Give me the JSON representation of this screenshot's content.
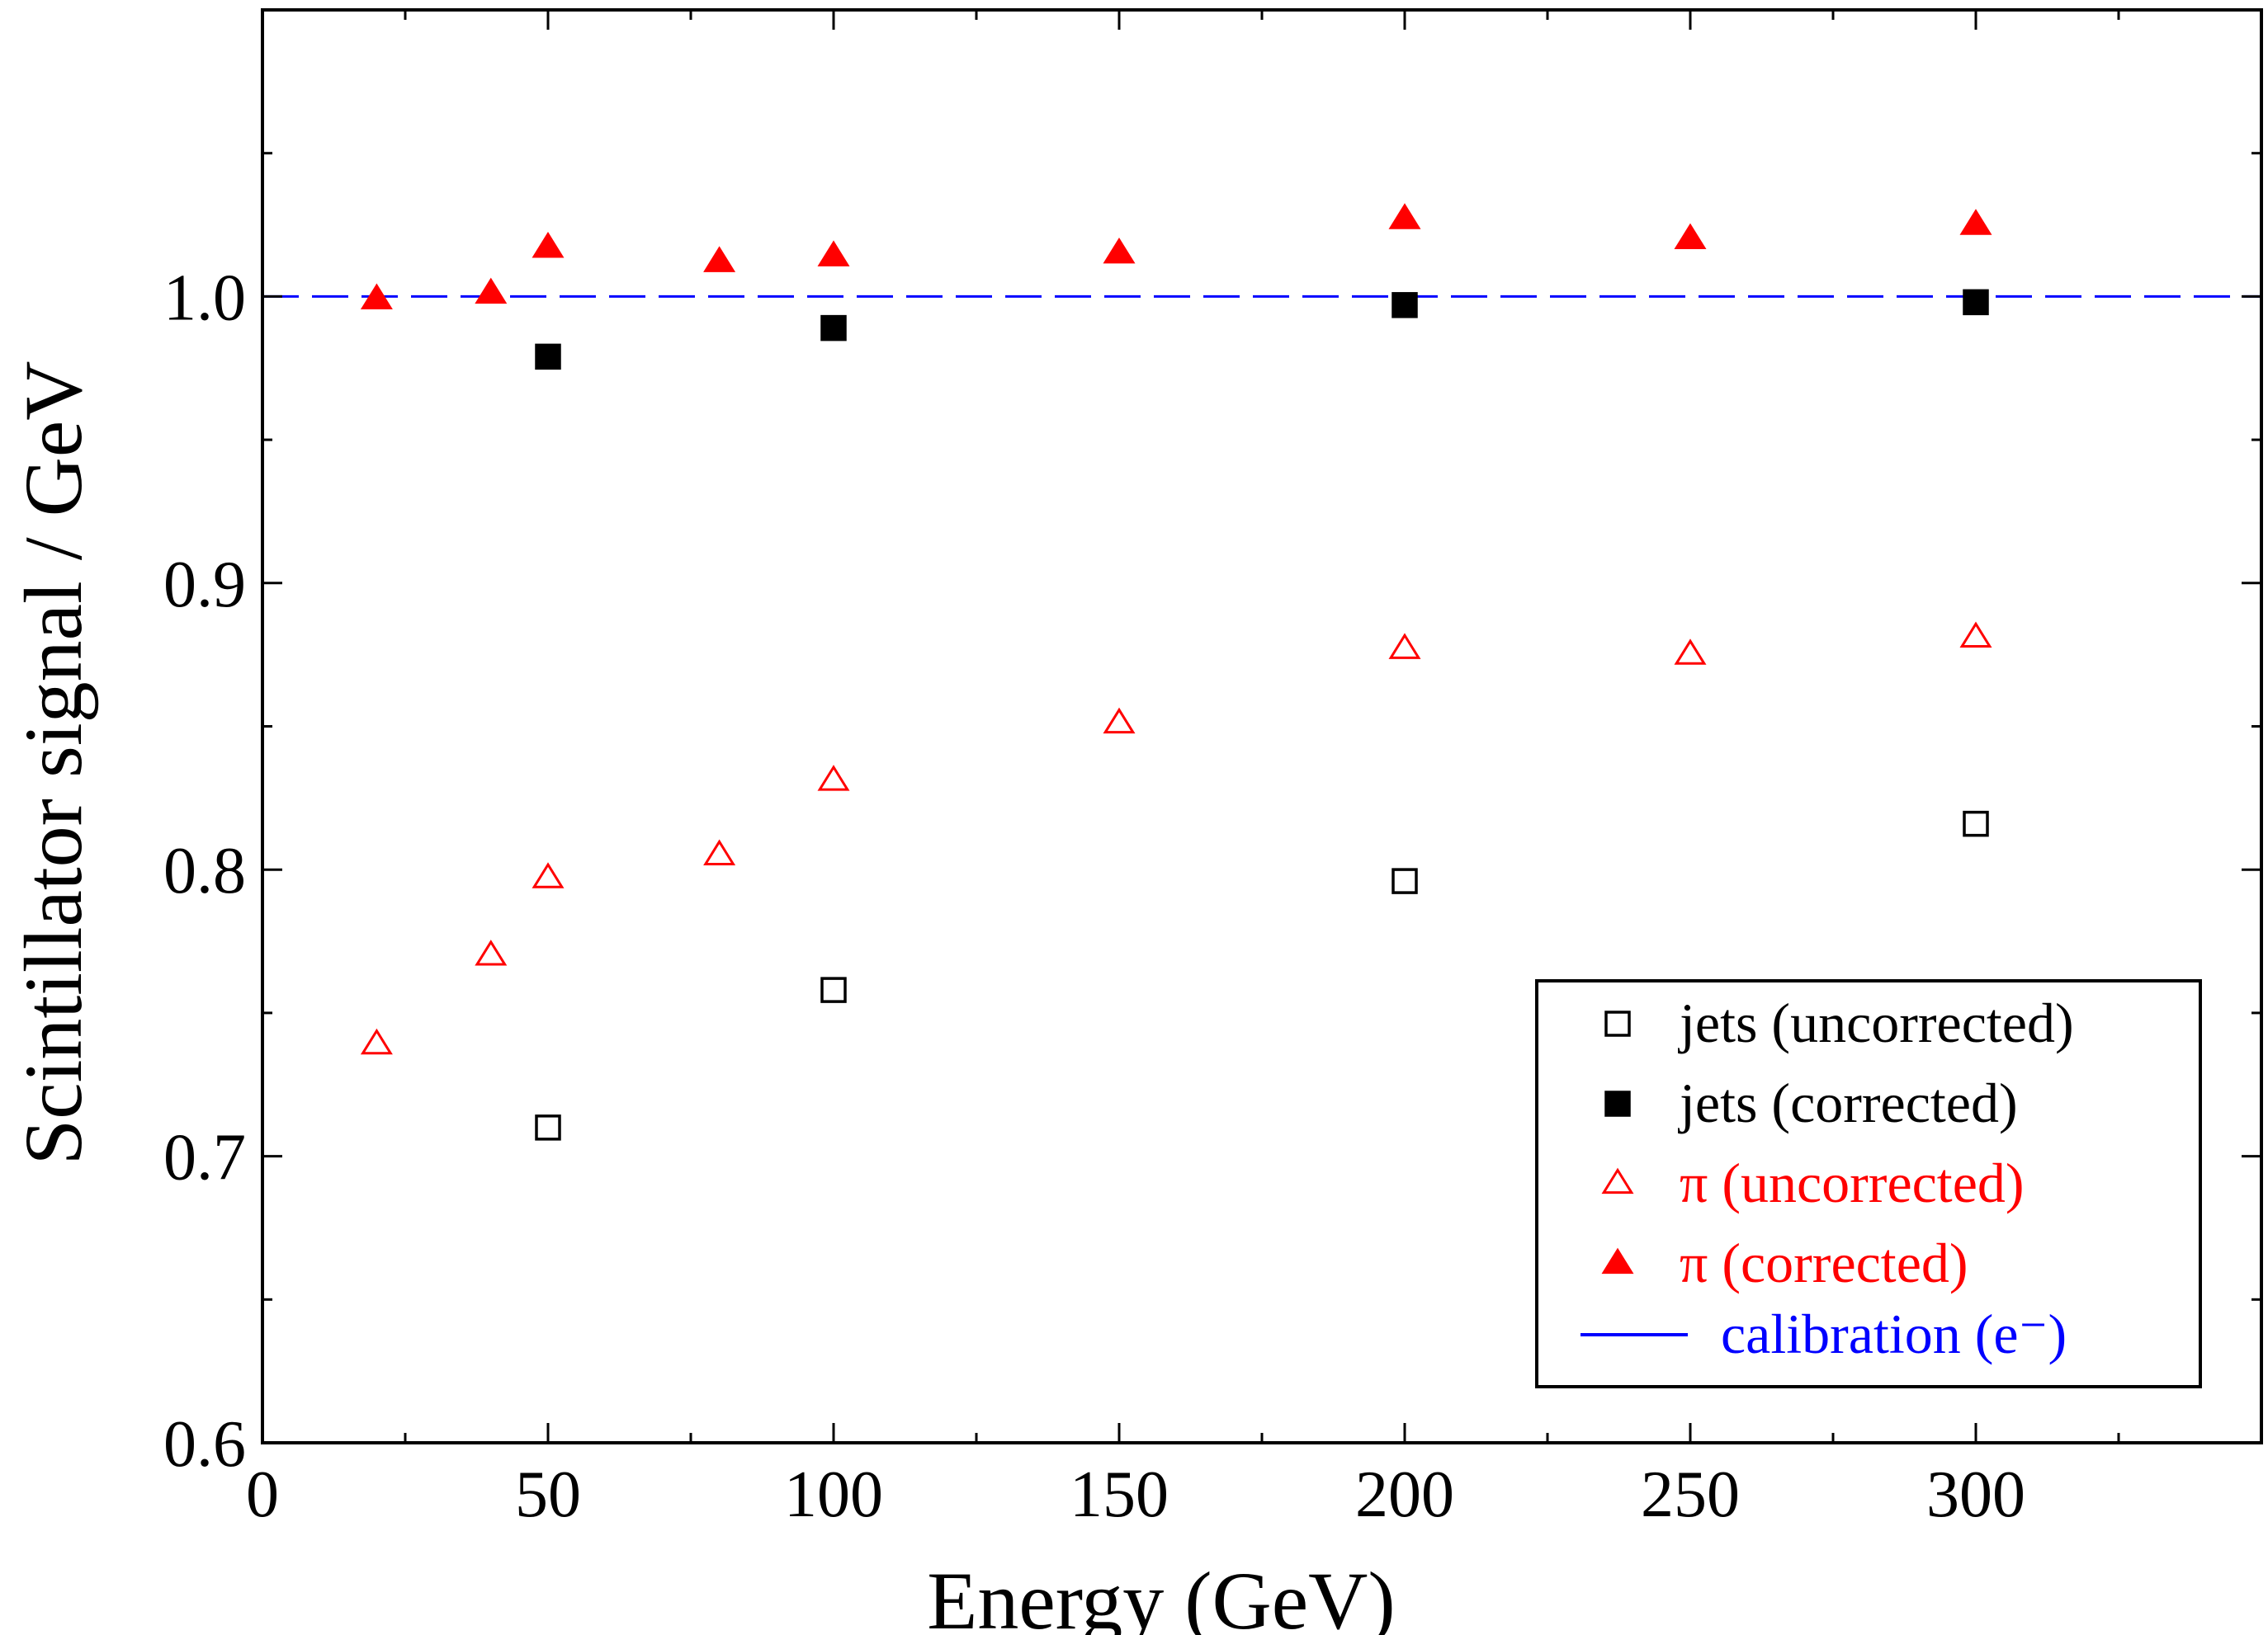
{
  "chart_data": {
    "type": "scatter",
    "xlabel": "Energy (GeV)",
    "ylabel": "Scintillator signal / GeV",
    "xlim": [
      0,
      350
    ],
    "ylim": [
      0.6,
      1.1
    ],
    "x_ticks": [
      0,
      50,
      100,
      150,
      200,
      250,
      300
    ],
    "x_tick_labels": [
      "0",
      "50",
      "100",
      "150",
      "200",
      "250",
      "300"
    ],
    "y_ticks": [
      0.6,
      0.7,
      0.8,
      0.9,
      1.0
    ],
    "y_tick_labels": [
      "0.6",
      "0.7",
      "0.8",
      "0.9",
      "1.0"
    ],
    "grid": false,
    "legend_position": "bottom-right",
    "series": [
      {
        "name": "jets (uncorrected)",
        "marker": "open-square",
        "color": "#000000",
        "x": [
          50,
          100,
          200,
          300
        ],
        "y": [
          0.71,
          0.758,
          0.796,
          0.816
        ]
      },
      {
        "name": "jets (corrected)",
        "marker": "filled-square",
        "color": "#000000",
        "x": [
          50,
          100,
          200,
          300
        ],
        "y": [
          0.979,
          0.989,
          0.997,
          0.998
        ]
      },
      {
        "name": "π (uncorrected)",
        "marker": "open-triangle",
        "color": "#ff0000",
        "x": [
          20,
          40,
          50,
          80,
          100,
          150,
          200,
          250,
          300
        ],
        "y": [
          0.739,
          0.77,
          0.797,
          0.805,
          0.831,
          0.851,
          0.877,
          0.875,
          0.881
        ]
      },
      {
        "name": "π (corrected)",
        "marker": "filled-triangle",
        "color": "#ff0000",
        "x": [
          20,
          40,
          50,
          80,
          100,
          150,
          200,
          250,
          300
        ],
        "y": [
          0.999,
          1.001,
          1.017,
          1.012,
          1.014,
          1.015,
          1.027,
          1.02,
          1.025
        ]
      },
      {
        "name": "calibration (e⁻)",
        "marker": "dashed-line",
        "color": "#0000ff",
        "y_constant": 1.0
      }
    ]
  }
}
